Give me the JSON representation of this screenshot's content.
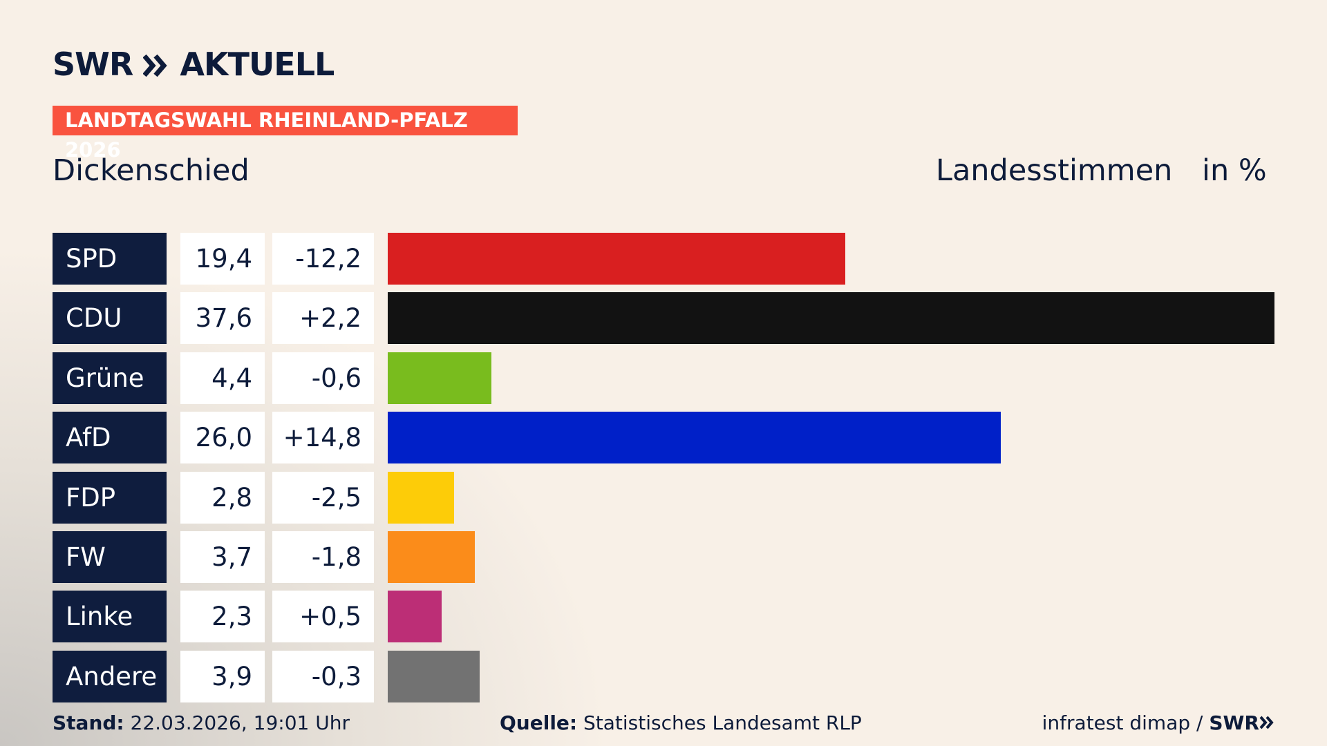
{
  "chart_data": {
    "type": "bar",
    "orientation": "horizontal",
    "brand": "SWR",
    "brand_suffix": "AKTUELL",
    "tag": "LANDTAGSWAHL RHEINLAND-PFALZ 2026",
    "title": "Dickenschied",
    "subtitle": "Landesstimmen",
    "unit": "in %",
    "categories": [
      "SPD",
      "CDU",
      "Grüne",
      "AfD",
      "FDP",
      "FW",
      "Linke",
      "Andere"
    ],
    "values": [
      19.4,
      37.6,
      4.4,
      26.0,
      2.8,
      3.7,
      2.3,
      3.9
    ],
    "value_labels": [
      "19,4",
      "37,6",
      "4,4",
      "26,0",
      "2,8",
      "3,7",
      "2,3",
      "3,9"
    ],
    "changes": [
      -12.2,
      2.2,
      -0.6,
      14.8,
      -2.5,
      -1.8,
      0.5,
      -0.3
    ],
    "change_labels": [
      "-12,2",
      "+2,2",
      "-0,6",
      "+14,8",
      "-2,5",
      "-1,8",
      "+0,5",
      "-0,3"
    ],
    "colors": [
      "#d91f20",
      "#121212",
      "#79bc1e",
      "#0020c8",
      "#fdcc08",
      "#fb8c1a",
      "#bc2e76",
      "#727272"
    ],
    "xlim": [
      0,
      37.6
    ],
    "footer": {
      "stand_label": "Stand:",
      "stand": "22.03.2026, 19:01 Uhr",
      "source_label": "Quelle:",
      "source": "Statistisches Landesamt RLP",
      "credit": "infratest dimap /",
      "credit_brand": "SWR"
    }
  }
}
